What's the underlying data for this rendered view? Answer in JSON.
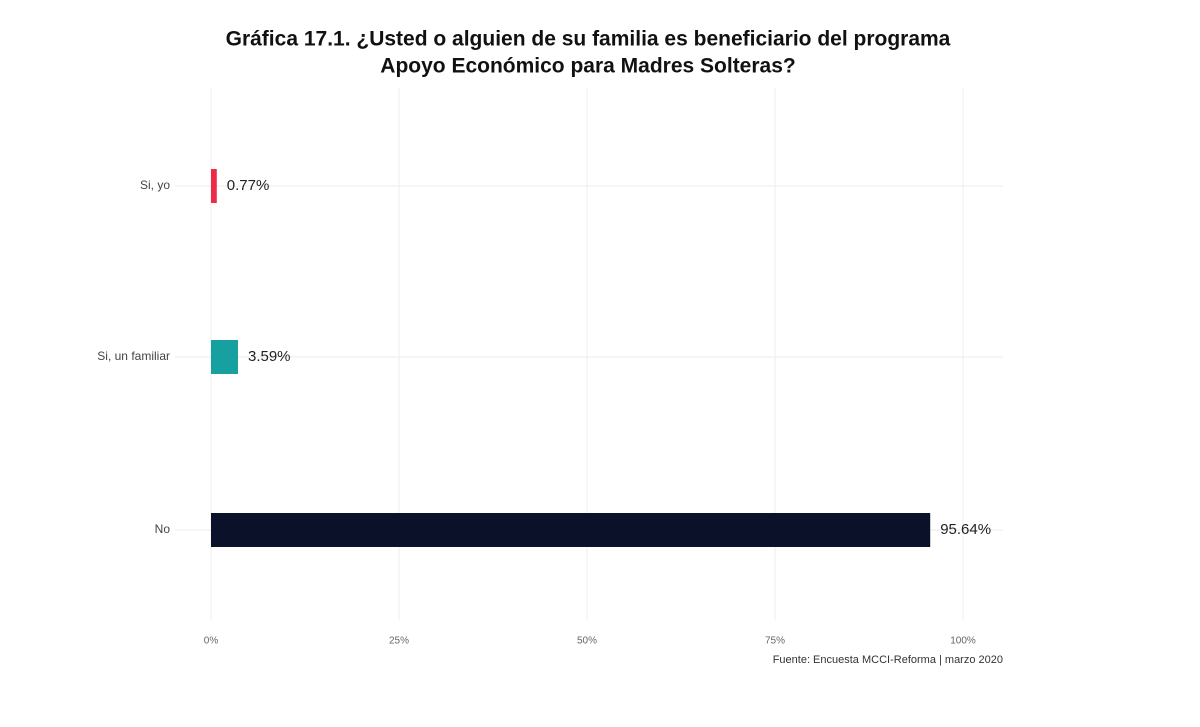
{
  "chart_data": {
    "type": "bar",
    "orientation": "horizontal",
    "title": [
      "Gráfica 17.1. ¿Usted o alguien de su familia es beneficiario del programa",
      "Apoyo Económico para Madres Solteras?"
    ],
    "categories": [
      "Si, yo",
      "Si, un familiar",
      "No"
    ],
    "values": [
      0.77,
      3.59,
      95.64
    ],
    "value_labels": [
      "0.77%",
      "3.59%",
      "95.64%"
    ],
    "colors": [
      "#ee2b47",
      "#17a0a0",
      "#0b1128"
    ],
    "xlim": [
      0,
      100
    ],
    "xticks": [
      {
        "value": 0,
        "label": "0%"
      },
      {
        "value": 25,
        "label": "25%"
      },
      {
        "value": 50,
        "label": "50%"
      },
      {
        "value": 75,
        "label": "75%"
      },
      {
        "value": 100,
        "label": "100%"
      }
    ],
    "grid": true,
    "caption": "Fuente: Encuesta MCCI-Reforma | marzo 2020"
  }
}
